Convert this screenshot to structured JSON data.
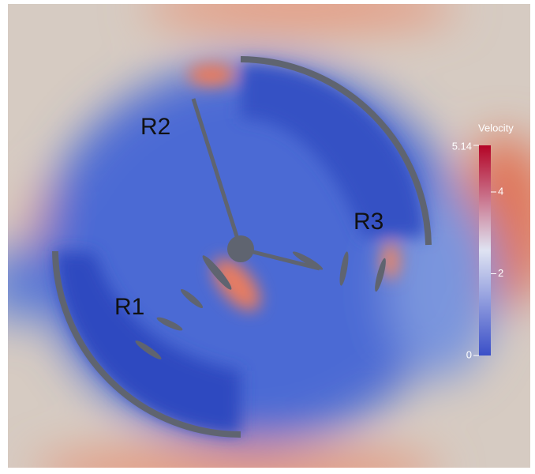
{
  "labels": [
    "R1",
    "R2",
    "R3"
  ],
  "colorbar": {
    "title": "Velocity",
    "range": [
      0,
      5.14
    ],
    "ticks": [
      0,
      2,
      4,
      5.14
    ]
  }
}
